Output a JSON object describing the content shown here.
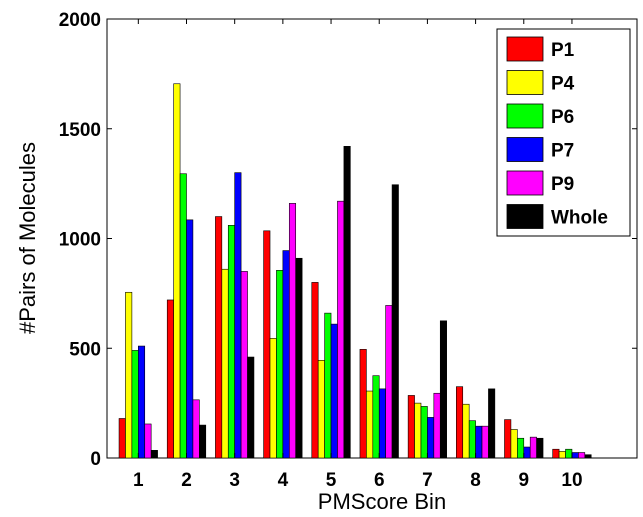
{
  "chart_data": {
    "type": "bar",
    "title": "",
    "xlabel": "PMScore Bin",
    "ylabel": "#Pairs of Molecules",
    "ylim": [
      0,
      2000
    ],
    "xlim": [
      0.35,
      11.35
    ],
    "yticks": [
      "0",
      "500",
      "1000",
      "1500",
      "2000"
    ],
    "ytick_values": [
      0,
      500,
      1000,
      1500,
      2000
    ],
    "categories": [
      "1",
      "2",
      "3",
      "4",
      "5",
      "6",
      "7",
      "8",
      "9",
      "10"
    ],
    "legend_position": "top-right",
    "grid": false,
    "series": [
      {
        "name": "P1",
        "color": "#ff0000",
        "values": [
          180,
          720,
          1100,
          1035,
          800,
          495,
          285,
          325,
          175,
          40
        ]
      },
      {
        "name": "P4",
        "color": "#ffff00",
        "values": [
          755,
          1705,
          860,
          545,
          445,
          305,
          250,
          245,
          130,
          30
        ]
      },
      {
        "name": "P6",
        "color": "#00ff00",
        "values": [
          490,
          1295,
          1060,
          855,
          660,
          375,
          235,
          170,
          90,
          40
        ]
      },
      {
        "name": "P7",
        "color": "#0000ff",
        "values": [
          510,
          1085,
          1300,
          945,
          610,
          315,
          185,
          145,
          50,
          25
        ]
      },
      {
        "name": "P9",
        "color": "#ff00ff",
        "values": [
          155,
          265,
          850,
          1160,
          1170,
          695,
          295,
          145,
          95,
          25
        ]
      },
      {
        "name": "Whole",
        "color": "#000000",
        "values": [
          35,
          150,
          460,
          910,
          1420,
          1245,
          625,
          315,
          90,
          15
        ]
      }
    ]
  }
}
